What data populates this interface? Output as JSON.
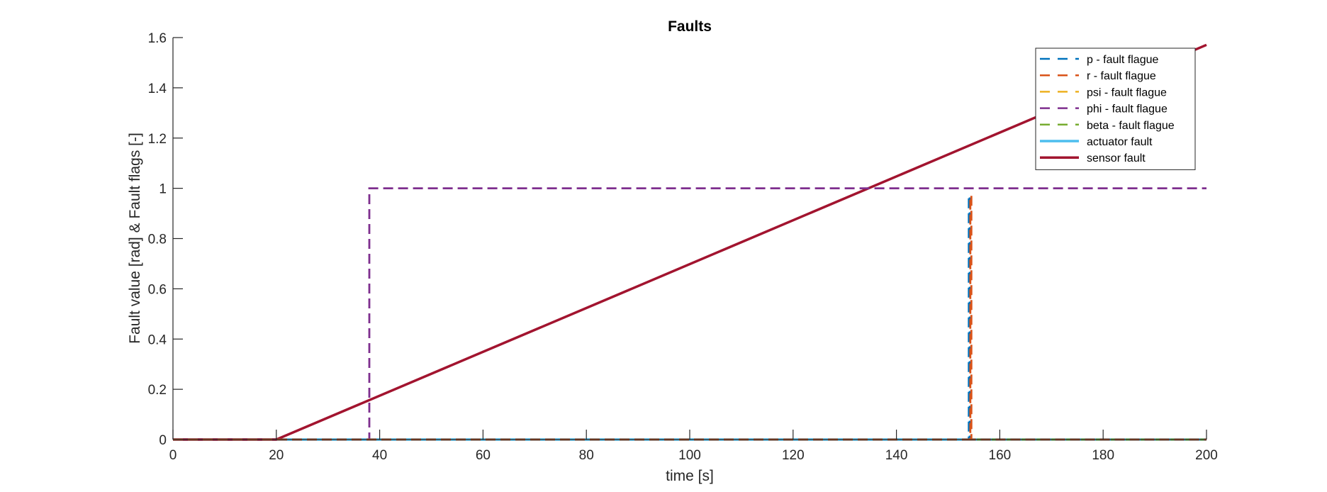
{
  "chart_data": {
    "type": "line",
    "title": "Faults",
    "xlabel": "time [s]",
    "ylabel": "Fault value [rad] & Fault flags [-]",
    "xlim": [
      0,
      200
    ],
    "ylim": [
      0,
      1.6
    ],
    "xticks": [
      0,
      20,
      40,
      60,
      80,
      100,
      120,
      140,
      160,
      180,
      200
    ],
    "yticks": [
      0,
      0.2,
      0.4,
      0.6,
      0.8,
      1,
      1.2,
      1.4,
      1.6
    ],
    "ytick_labels": [
      "0",
      "0.2",
      "0.4",
      "0.6",
      "0.8",
      "1",
      "1.2",
      "1.4",
      "1.6"
    ],
    "grid": false,
    "legend_position": "top-right",
    "series": [
      {
        "name": "p - fault flague",
        "style": "dashed",
        "color": "#0072BD",
        "points": [
          [
            0,
            0
          ],
          [
            154,
            0
          ],
          [
            154,
            0.97
          ],
          [
            154.2,
            0.97
          ],
          [
            154.2,
            0
          ],
          [
            200,
            0
          ]
        ]
      },
      {
        "name": "r - fault flague",
        "style": "dashed",
        "color": "#D95319",
        "points": [
          [
            0,
            0
          ],
          [
            154.3,
            0
          ],
          [
            154.3,
            0.97
          ],
          [
            154.5,
            0.97
          ],
          [
            154.5,
            0
          ],
          [
            200,
            0
          ]
        ]
      },
      {
        "name": "psi - fault flague",
        "style": "dashed",
        "color": "#EDB120",
        "points": [
          [
            0,
            0
          ],
          [
            200,
            0
          ]
        ]
      },
      {
        "name": "phi - fault flague",
        "style": "dashed",
        "color": "#7E2F8E",
        "points": [
          [
            0,
            0
          ],
          [
            38,
            0
          ],
          [
            38,
            1
          ],
          [
            200,
            1
          ]
        ]
      },
      {
        "name": "beta - fault flague",
        "style": "dashed",
        "color": "#77AC30",
        "points": [
          [
            0,
            0
          ],
          [
            200,
            0
          ]
        ]
      },
      {
        "name": "actuator fault",
        "style": "solid",
        "color": "#4DBEEE",
        "points": [
          [
            0,
            0
          ],
          [
            200,
            0
          ]
        ]
      },
      {
        "name": "sensor fault",
        "style": "solid",
        "color": "#A2142F",
        "points": [
          [
            0,
            0
          ],
          [
            20,
            0
          ],
          [
            200,
            1.571
          ]
        ]
      }
    ]
  }
}
